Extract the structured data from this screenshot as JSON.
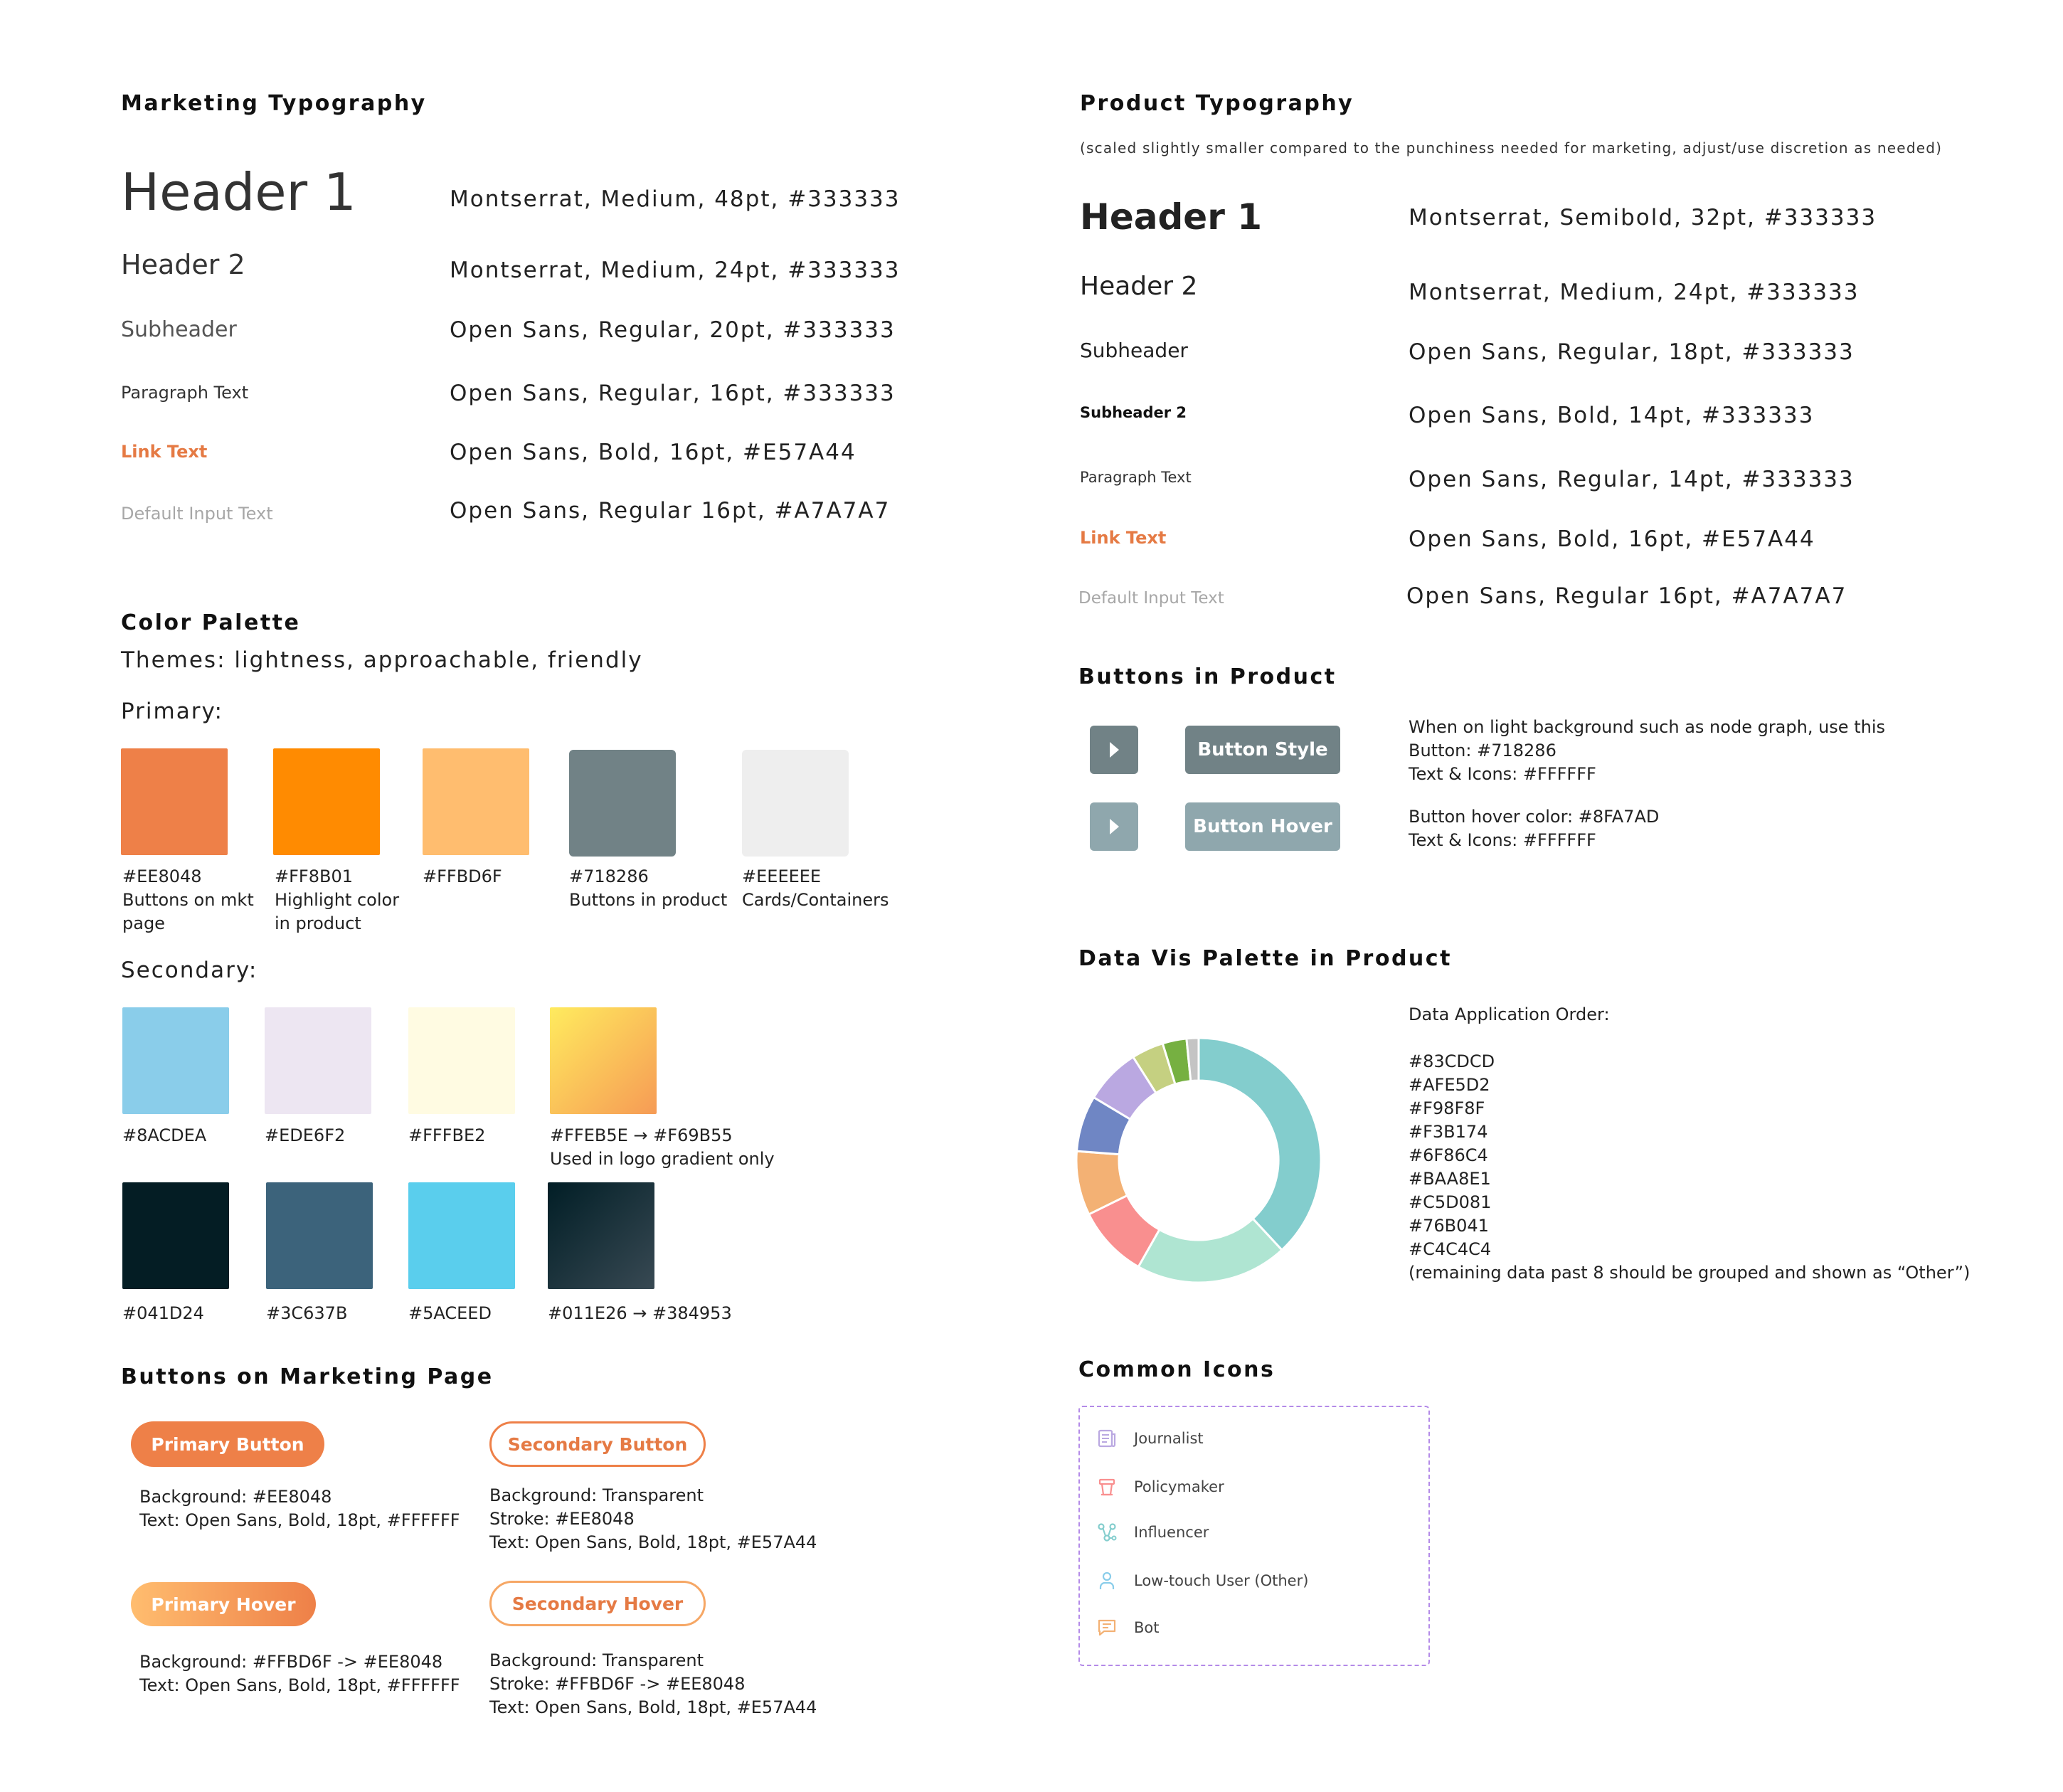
{
  "marketing_typography": {
    "title": "Marketing Typography",
    "rows": [
      {
        "sample": "Header 1",
        "spec": "Montserrat, Medium, 48pt, #333333"
      },
      {
        "sample": "Header 2",
        "spec": "Montserrat, Medium, 24pt, #333333"
      },
      {
        "sample": "Subheader",
        "spec": "Open Sans, Regular, 20pt, #333333"
      },
      {
        "sample": "Paragraph Text",
        "spec": "Open Sans, Regular, 16pt, #333333"
      },
      {
        "sample": "Link Text",
        "spec": "Open Sans, Bold, 16pt, #E57A44"
      },
      {
        "sample": "Default Input Text",
        "spec": "Open Sans, Regular 16pt, #A7A7A7"
      }
    ]
  },
  "product_typography": {
    "title": "Product Typography",
    "note": "(scaled slightly smaller compared to the punchiness needed for marketing, adjust/use discretion as needed)",
    "rows": [
      {
        "sample": "Header 1",
        "spec": "Montserrat, Semibold, 32pt, #333333"
      },
      {
        "sample": "Header 2",
        "spec": "Montserrat, Medium, 24pt, #333333"
      },
      {
        "sample": "Subheader",
        "spec": "Open Sans, Regular, 18pt, #333333"
      },
      {
        "sample": "Subheader 2",
        "spec": "Open Sans, Bold, 14pt, #333333"
      },
      {
        "sample": "Paragraph Text",
        "spec": "Open Sans, Regular, 14pt, #333333"
      },
      {
        "sample": "Link Text",
        "spec": "Open Sans, Bold, 16pt, #E57A44"
      },
      {
        "sample": "Default Input Text",
        "spec": "Open Sans, Regular 16pt, #A7A7A7"
      }
    ]
  },
  "color_palette": {
    "title": "Color Palette",
    "themes": "Themes: lightness, approachable, friendly",
    "primary_label": "Primary:",
    "secondary_label": "Secondary:",
    "primary": [
      {
        "color": "#EE8048",
        "label": "#EE8048\nButtons on mkt\npage"
      },
      {
        "color": "#FF8B01",
        "label": "#FF8B01\nHighlight color\nin product"
      },
      {
        "color": "#FFBD6F",
        "label": "#FFBD6F"
      },
      {
        "color": "#718286",
        "label": "#718286\nButtons in product"
      },
      {
        "color": "#EEEEEE",
        "label": "#EEEEEE\nCards/Containers"
      }
    ],
    "secondary": [
      {
        "color": "#8ACDEA",
        "label": "#8ACDEA"
      },
      {
        "color": "#EDE6F2",
        "label": "#EDE6F2"
      },
      {
        "color": "#FFFBE2",
        "label": "#FFFBE2"
      },
      {
        "color": "#FFEB5E",
        "color2": "#F69B55",
        "label": "#FFEB5E → #F69B55\nUsed in logo gradient only"
      },
      {
        "color": "#041D24",
        "label": "#041D24"
      },
      {
        "color": "#3C637B",
        "label": "#3C637B"
      },
      {
        "color": "#5ACEED",
        "label": "#5ACEED"
      },
      {
        "color": "#011E26",
        "color2": "#384953",
        "label": "#011E26 → #384953"
      }
    ]
  },
  "marketing_buttons": {
    "title": "Buttons on Marketing Page",
    "primary": {
      "label": "Primary Button",
      "desc": "Background: #EE8048\nText: Open Sans, Bold, 18pt, #FFFFFF"
    },
    "secondary": {
      "label": "Secondary Button",
      "desc": "Background: Transparent\nStroke: #EE8048\nText: Open Sans, Bold, 18pt, #E57A44"
    },
    "primary_hover": {
      "label": "Primary Hover",
      "desc": "Background: #FFBD6F -> #EE8048\nText: Open Sans, Bold, 18pt, #FFFFFF"
    },
    "secondary_hover": {
      "label": "Secondary Hover",
      "desc": "Background: Transparent\nStroke: #FFBD6F -> #EE8048\nText: Open Sans, Bold, 18pt, #E57A44"
    }
  },
  "product_buttons": {
    "title": "Buttons in Product",
    "style": {
      "label": "Button Style",
      "color": "#718286",
      "desc": "When on light background such as node graph, use this\nButton: #718286\nText & Icons: #FFFFFF"
    },
    "hover": {
      "label": "Button Hover",
      "color": "#8FA7AD",
      "desc": "Button hover color: #8FA7AD\nText & Icons: #FFFFFF"
    }
  },
  "data_vis": {
    "title": "Data Vis Palette in Product",
    "order_text": "Data Application Order:\n\n#83CDCD\n#AFE5D2\n#F98F8F\n#F3B174\n#6F86C4\n#BAA8E1\n#C5D081\n#76B041\n#C4C4C4\n(remaining data past 8 should be grouped and shown as “Other”)"
  },
  "chart_data": {
    "type": "pie",
    "donut": true,
    "categories": [
      "#83CDCD",
      "#AFE5D2",
      "#F98F8F",
      "#F3B174",
      "#6F86C4",
      "#BAA8E1",
      "#C5D081",
      "#76B041",
      "#C4C4C4"
    ],
    "values": [
      36,
      19,
      9,
      8,
      7,
      7,
      4,
      3,
      1.5
    ],
    "colors": [
      "#83CDCD",
      "#AFE5D2",
      "#F98F8F",
      "#F3B174",
      "#6F86C4",
      "#BAA8E1",
      "#C5D081",
      "#76B041",
      "#C4C4C4"
    ]
  },
  "common_icons": {
    "title": "Common Icons",
    "items": [
      {
        "label": "Journalist",
        "icon": "newspaper-icon",
        "color": "#BAA8E1"
      },
      {
        "label": "Policymaker",
        "icon": "podium-icon",
        "color": "#F98F8F"
      },
      {
        "label": "Influencer",
        "icon": "network-icon",
        "color": "#83CDCD"
      },
      {
        "label": "Low-touch User (Other)",
        "icon": "user-icon",
        "color": "#8ACDEA"
      },
      {
        "label": "Bot",
        "icon": "chat-icon",
        "color": "#F3B174"
      }
    ]
  }
}
